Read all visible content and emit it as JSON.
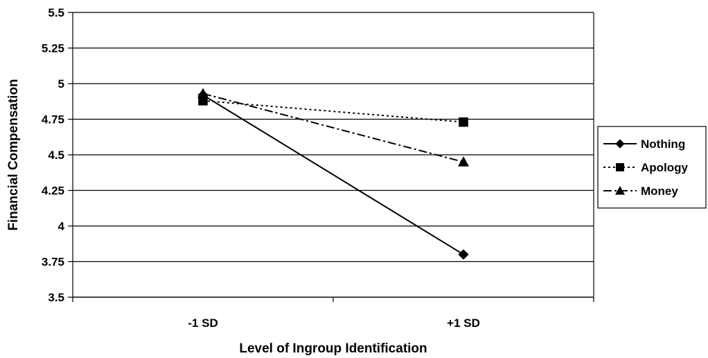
{
  "chart_data": {
    "type": "line",
    "categories": [
      "-1 SD",
      "+1 SD"
    ],
    "series": [
      {
        "name": "Nothing",
        "values": [
          4.92,
          3.8
        ],
        "marker": "diamond",
        "dash": "solid"
      },
      {
        "name": "Apology",
        "values": [
          4.88,
          4.73
        ],
        "marker": "square",
        "dash": "dotted"
      },
      {
        "name": "Money",
        "values": [
          4.93,
          4.45
        ],
        "marker": "triangle",
        "dash": "dashdot"
      }
    ],
    "title": "",
    "xlabel": "Level of Ingroup Identification",
    "ylabel": "Financial Compensation",
    "ylim": [
      3.5,
      5.5
    ],
    "yticks": [
      "5.5",
      "5.25",
      "5",
      "4.75",
      "4.5",
      "4.25",
      "4",
      "3.75",
      "3.5"
    ],
    "grid": true,
    "legend_position": "right",
    "line_color": "#000000"
  }
}
